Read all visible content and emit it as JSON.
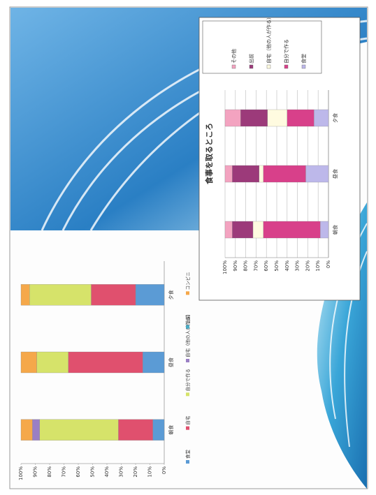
{
  "chart_data": [
    {
      "type": "bar",
      "stacked": true,
      "categories": [
        "朝食",
        "昼食",
        "夕食"
      ],
      "series": [
        {
          "name": "食堂",
          "color": "#5b9bd5",
          "values": [
            8,
            15,
            20
          ]
        },
        {
          "name": "自宅",
          "color": "#e0506e",
          "values": [
            24,
            52,
            31
          ]
        },
        {
          "name": "自分で作る",
          "color": "#d6e36a",
          "values": [
            55,
            22,
            43
          ]
        },
        {
          "name": "自宅（他の人が作る）",
          "color": "#9a7fc4",
          "values": [
            5,
            0,
            0
          ]
        },
        {
          "name": "出前",
          "color": "#4bacc6",
          "values": [
            0,
            0,
            0
          ]
        },
        {
          "name": "コンビニ",
          "color": "#f5a84a",
          "values": [
            8,
            11,
            6
          ]
        }
      ],
      "ylim": [
        0,
        100
      ],
      "yticks": [
        {
          "value": 0,
          "label": "0%"
        },
        {
          "value": 10,
          "label": "10%"
        },
        {
          "value": 20,
          "label": "20%"
        },
        {
          "value": 30,
          "label": "30%"
        },
        {
          "value": 40,
          "label": "40%"
        },
        {
          "value": 50,
          "label": "50%"
        },
        {
          "value": 60,
          "label": "60%"
        },
        {
          "value": 70,
          "label": "70%"
        },
        {
          "value": 80,
          "label": "80%"
        },
        {
          "value": 90,
          "label": "90%"
        },
        {
          "value": 100,
          "label": "100%"
        }
      ],
      "grid": false,
      "legend": "bottom"
    },
    {
      "type": "bar",
      "stacked": true,
      "title": "食事を取るところ",
      "categories": [
        "朝食",
        "昼食",
        "夕食"
      ],
      "series": [
        {
          "name": "食堂",
          "color": "#bdb8ea",
          "values": [
            8,
            22,
            14
          ]
        },
        {
          "name": "自分で作る",
          "color": "#d8408a",
          "values": [
            55,
            41,
            26
          ]
        },
        {
          "name": "自宅（他の人が作る）",
          "color": "#fffbe0",
          "values": [
            10,
            4,
            19
          ]
        },
        {
          "name": "出前",
          "color": "#9c3a7a",
          "values": [
            20,
            26,
            26
          ]
        },
        {
          "name": "その他",
          "color": "#f3a3c0",
          "values": [
            7,
            7,
            15
          ]
        }
      ],
      "ylim": [
        0,
        100
      ],
      "yticks": [
        {
          "value": 0,
          "label": "0%"
        },
        {
          "value": 10,
          "label": "10%"
        },
        {
          "value": 20,
          "label": "20%"
        },
        {
          "value": 30,
          "label": "30%"
        },
        {
          "value": 40,
          "label": "40%"
        },
        {
          "value": 50,
          "label": "50%"
        },
        {
          "value": 60,
          "label": "60%"
        },
        {
          "value": 70,
          "label": "70%"
        },
        {
          "value": 80,
          "label": "80%"
        },
        {
          "value": 90,
          "label": "90%"
        },
        {
          "value": 100,
          "label": "100%"
        }
      ],
      "grid": true,
      "legend": "right"
    }
  ]
}
